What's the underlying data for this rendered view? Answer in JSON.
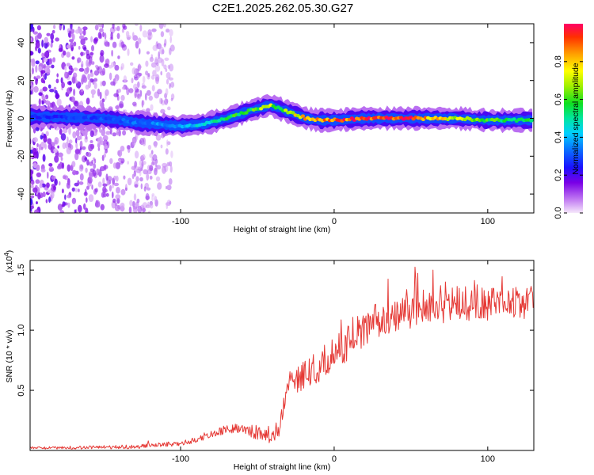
{
  "title": "C2E1.2025.262.05.30.G27",
  "chart_data": [
    {
      "type": "heatmap",
      "xlabel": "Height of straight line (km)",
      "ylabel": "Frequency (Hz)",
      "xlim": [
        -198,
        130
      ],
      "ylim": [
        -50,
        50
      ],
      "xticks": [
        -100,
        0,
        100
      ],
      "yticks": [
        -40,
        -20,
        0,
        20,
        40
      ],
      "colorbar": {
        "label": "Normalized spectral amplitude",
        "range": [
          0,
          1
        ],
        "ticks": [
          "0.0",
          "0.2",
          "0.4",
          "0.6",
          "0.8"
        ]
      },
      "ridge": {
        "x": [
          -198,
          -150,
          -120,
          -100,
          -85,
          -70,
          -55,
          -42,
          -35,
          -25,
          -18,
          -10,
          0,
          20,
          50,
          80,
          100,
          130
        ],
        "frequency": [
          1,
          0,
          -3,
          -4,
          -3,
          0,
          4,
          7,
          5,
          2,
          0,
          -1,
          -1,
          0,
          0,
          0,
          -1,
          -1
        ],
        "amplitude": [
          0.25,
          0.3,
          0.35,
          0.4,
          0.45,
          0.55,
          0.6,
          0.7,
          0.6,
          0.75,
          0.85,
          0.9,
          0.9,
          0.98,
          0.95,
          0.7,
          0.6,
          0.55
        ]
      },
      "noise_region_x": [
        -198,
        -105
      ]
    },
    {
      "type": "line",
      "xlabel": "Height of straight line (km)",
      "ylabel": "SNR (10 * v/v)",
      "scale_label_prefix": "(x10",
      "scale_label_exponent": "4",
      "scale_label_suffix": ")",
      "xlim": [
        -198,
        130
      ],
      "ylim": [
        0,
        1.58
      ],
      "xticks": [
        -100,
        0,
        100
      ],
      "yticks": [
        0.5,
        1.0,
        1.5
      ],
      "ytick_labels": [
        "0.5",
        "1.0",
        "1.5"
      ],
      "color": "#e53935",
      "trend": {
        "x": [
          -198,
          -130,
          -100,
          -90,
          -80,
          -60,
          -50,
          -40,
          -35,
          -30,
          -20,
          -10,
          0,
          10,
          30,
          60,
          90,
          130
        ],
        "y": [
          0.02,
          0.03,
          0.06,
          0.09,
          0.14,
          0.2,
          0.15,
          0.12,
          0.2,
          0.55,
          0.62,
          0.7,
          0.8,
          0.9,
          1.1,
          1.2,
          1.23,
          1.22
        ]
      },
      "noise_amplitude": [
        0.01,
        0.02,
        0.05,
        0.1,
        0.15,
        0.15
      ]
    }
  ]
}
